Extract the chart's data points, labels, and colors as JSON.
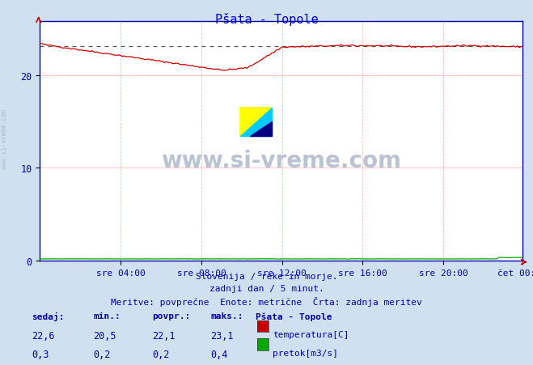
{
  "title": "Pšata - Topole",
  "bg_color": "#d0e0f0",
  "plot_bg_color": "#ffffff",
  "grid_color_h": "#ffaaaa",
  "grid_color_v": "#ffaaaa",
  "x_labels": [
    "sre 04:00",
    "sre 08:00",
    "sre 12:00",
    "sre 16:00",
    "sre 20:00",
    "čet 00:00"
  ],
  "y_ticks": [
    0,
    10,
    20
  ],
  "ylim": [
    0,
    25.8
  ],
  "subtitle_lines": [
    "Slovenija / reke in morje.",
    "zadnji dan / 5 minut.",
    "Meritve: povprečne  Enote: metrične  Črta: zadnja meritev"
  ],
  "legend_title": "Pšata - Topole",
  "legend_items": [
    {
      "label": "temperatura[C]",
      "color": "#cc0000"
    },
    {
      "label": "pretok[m3/s]",
      "color": "#00aa00"
    }
  ],
  "stats_headers": [
    "sedaj:",
    "min.:",
    "povpr.:",
    "maks.:"
  ],
  "stats": [
    [
      "22,6",
      "20,5",
      "22,1",
      "23,1"
    ],
    [
      "0,3",
      "0,2",
      "0,2",
      "0,4"
    ]
  ],
  "temp_max": 23.1,
  "watermark": "www.si-vreme.com",
  "left_watermark": "www.si-vreme.com",
  "axis_color": "#0000aa",
  "text_color": "#0000aa",
  "title_color": "#0000cc"
}
